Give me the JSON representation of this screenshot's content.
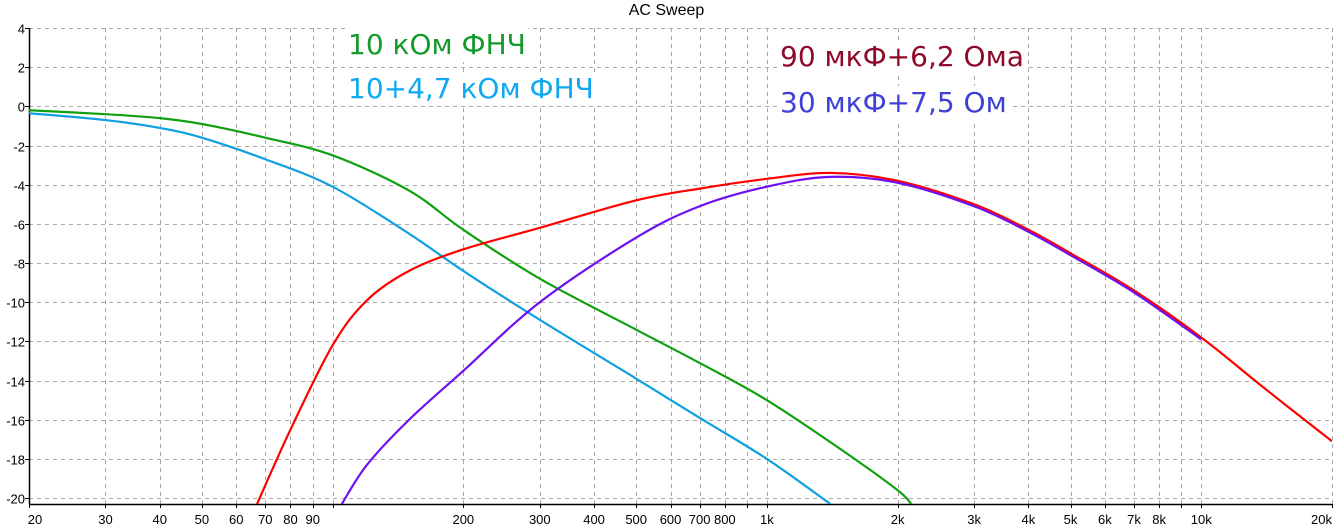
{
  "chart_data": {
    "type": "line",
    "title": "AC Sweep",
    "xlabel": "",
    "ylabel": "",
    "xscale": "log",
    "xlim": [
      20,
      20000
    ],
    "ylim": [
      -20.3,
      4
    ],
    "grid": true,
    "yticks": [
      4,
      2,
      0,
      -2,
      -4,
      -6,
      -8,
      -10,
      -12,
      -14,
      -16,
      -18,
      -20
    ],
    "ytick_labels": [
      "4",
      "2",
      "0",
      "-2",
      "-4",
      "-6",
      "-8",
      "-10",
      "-12",
      "-14",
      "-16",
      "-18",
      "-20"
    ],
    "xgrid": [
      20,
      30,
      40,
      50,
      60,
      70,
      80,
      90,
      100,
      200,
      300,
      400,
      500,
      600,
      700,
      800,
      900,
      1000,
      2000,
      3000,
      4000,
      5000,
      6000,
      7000,
      8000,
      9000,
      10000,
      20000
    ],
    "xticks": [
      {
        "value": 20,
        "label": "20"
      },
      {
        "value": 30,
        "label": "30"
      },
      {
        "value": 40,
        "label": "40"
      },
      {
        "value": 50,
        "label": "50"
      },
      {
        "value": 60,
        "label": "60"
      },
      {
        "value": 70,
        "label": "70"
      },
      {
        "value": 80,
        "label": "80"
      },
      {
        "value": 90,
        "label": "90"
      },
      {
        "value": 200,
        "label": "200"
      },
      {
        "value": 300,
        "label": "300"
      },
      {
        "value": 400,
        "label": "400"
      },
      {
        "value": 500,
        "label": "500"
      },
      {
        "value": 600,
        "label": "600"
      },
      {
        "value": 700,
        "label": "700"
      },
      {
        "value": 800,
        "label": "800"
      },
      {
        "value": 1000,
        "label": "1k"
      },
      {
        "value": 2000,
        "label": "2k"
      },
      {
        "value": 3000,
        "label": "3k"
      },
      {
        "value": 4000,
        "label": "4k"
      },
      {
        "value": 5000,
        "label": "5k"
      },
      {
        "value": 6000,
        "label": "6k"
      },
      {
        "value": 7000,
        "label": "7k"
      },
      {
        "value": 8000,
        "label": "8k"
      },
      {
        "value": 10000,
        "label": "10k"
      },
      {
        "value": 20000,
        "label": "20k"
      }
    ],
    "series": [
      {
        "name": "10 кОм ФНЧ",
        "color": "#10a010",
        "label_color": "#159a2a",
        "x": [
          20,
          30,
          40,
          50,
          70,
          100,
          150,
          200,
          300,
          500,
          700,
          1000,
          1500,
          2000,
          2150
        ],
        "y": [
          -0.2,
          -0.4,
          -0.6,
          -0.9,
          -1.6,
          -2.5,
          -4.3,
          -6.3,
          -8.8,
          -11.4,
          -13.1,
          -15.0,
          -17.6,
          -19.6,
          -20.3
        ]
      },
      {
        "name": "10+4,7 кОм ФНЧ",
        "color": "#10a0e0",
        "label_color": "#10a8f0",
        "x": [
          20,
          30,
          40,
          50,
          70,
          100,
          150,
          200,
          300,
          500,
          700,
          1000,
          1400
        ],
        "y": [
          -0.35,
          -0.7,
          -1.1,
          -1.6,
          -2.7,
          -4.1,
          -6.5,
          -8.4,
          -10.9,
          -13.9,
          -15.9,
          -18.0,
          -20.3
        ]
      },
      {
        "name": "90 мкФ+6,2 Ома",
        "color": "#ff0000",
        "label_color": "#8e0a28",
        "x": [
          67,
          80,
          100,
          120,
          150,
          200,
          300,
          500,
          700,
          1000,
          1400,
          2000,
          3000,
          4000,
          5000,
          7000,
          10000,
          14000,
          20000
        ],
        "y": [
          -20.3,
          -16.5,
          -12.2,
          -9.9,
          -8.4,
          -7.3,
          -6.2,
          -4.8,
          -4.2,
          -3.7,
          -3.4,
          -3.8,
          -5.0,
          -6.3,
          -7.5,
          -9.4,
          -11.8,
          -14.4,
          -17.1
        ]
      },
      {
        "name": "30 мкФ+7,5 Ом",
        "color": "#7010f0",
        "label_color": "#4040d8",
        "x": [
          105,
          120,
          150,
          200,
          300,
          500,
          700,
          1000,
          1400,
          2000,
          3000,
          4000,
          5000,
          7000,
          10000
        ],
        "y": [
          -20.3,
          -18.3,
          -16.0,
          -13.5,
          -10.0,
          -6.7,
          -5.1,
          -4.1,
          -3.6,
          -3.9,
          -5.1,
          -6.4,
          -7.6,
          -9.5,
          -11.9
        ]
      }
    ]
  }
}
